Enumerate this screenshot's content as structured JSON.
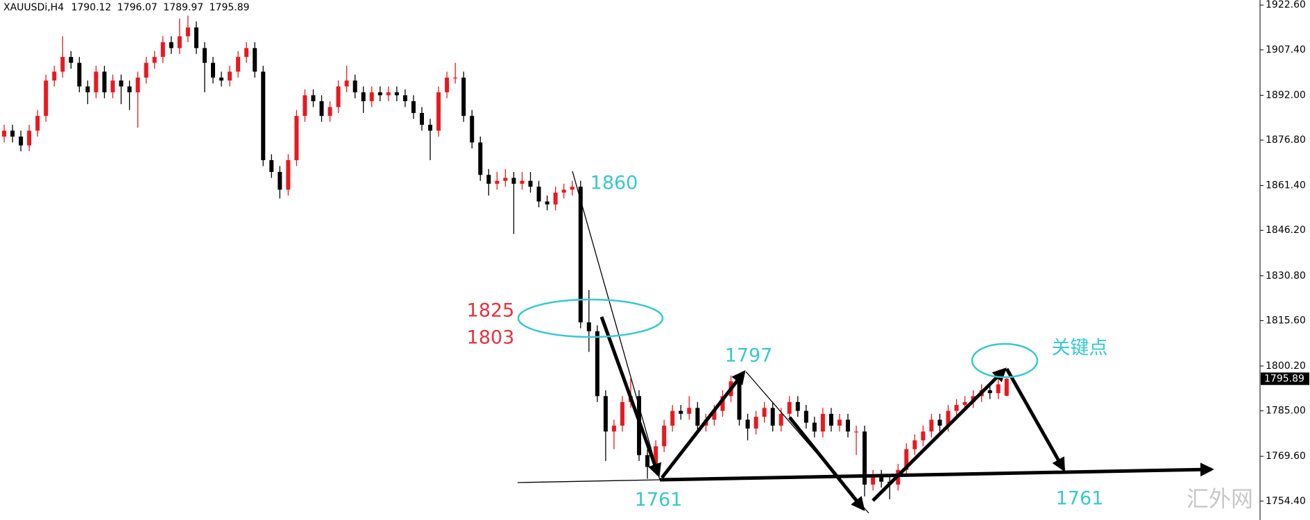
{
  "chart_data": {
    "type": "candlestick",
    "title": "XAUUSDi,H4",
    "up_color": "#e8191f",
    "down_color": "#000000",
    "ylim": [
      1748,
      1924.3
    ],
    "yticks": [
      {
        "value": 1922.6,
        "label": "1922.60"
      },
      {
        "value": 1907.4,
        "label": "1907.40"
      },
      {
        "value": 1892,
        "label": "1892.00"
      },
      {
        "value": 1876.8,
        "label": "1876.80"
      },
      {
        "value": 1861.4,
        "label": "1861.40"
      },
      {
        "value": 1846.2,
        "label": "1846.20"
      },
      {
        "value": 1830.8,
        "label": "1830.80"
      },
      {
        "value": 1815.6,
        "label": "1815.60"
      },
      {
        "value": 1800.2,
        "label": "1800.20"
      },
      {
        "value": 1785,
        "label": "1785.00"
      },
      {
        "value": 1769.6,
        "label": "1769.60"
      },
      {
        "value": 1754.4,
        "label": "1754.40"
      }
    ],
    "open": [
      1878,
      1880,
      1878,
      1875,
      1880,
      1885,
      1897,
      1900,
      1905,
      1903,
      1895,
      1893,
      1900,
      1893,
      1897,
      1895,
      1893,
      1898,
      1903,
      1905,
      1910,
      1908,
      1912,
      1915,
      1908,
      1903,
      1898,
      1897,
      1900,
      1905,
      1908,
      1900,
      1870,
      1866,
      1860,
      1870,
      1885,
      1892,
      1890,
      1885,
      1888,
      1895,
      1897,
      1893,
      1890,
      1893,
      1892,
      1893,
      1892,
      1890,
      1886,
      1882,
      1880,
      1893,
      1898,
      1898,
      1885,
      1876,
      1865,
      1862,
      1863,
      1864,
      1862,
      1863,
      1861,
      1856,
      1855,
      1859,
      1860,
      1861,
      1815,
      1812,
      1790,
      1778,
      1780,
      1788,
      1790,
      1770,
      1766,
      1773,
      1780,
      1785,
      1784,
      1786,
      1780,
      1782,
      1785,
      1790,
      1795,
      1782,
      1779,
      1783,
      1786,
      1780,
      1784,
      1788,
      1785,
      1781,
      1778,
      1784,
      1780,
      1782,
      1778,
      1778,
      1760,
      1763,
      1761,
      1760,
      1765,
      1772,
      1775,
      1778,
      1782,
      1780,
      1785,
      1787,
      1788,
      1790,
      1792,
      1791,
      1790.12
    ],
    "high": [
      1882,
      1882,
      1880,
      1882,
      1887,
      1899,
      1902,
      1912,
      1907,
      1905,
      1897,
      1902,
      1902,
      1899,
      1899,
      1897,
      1900,
      1905,
      1907,
      1912,
      1912,
      1918,
      1919,
      1917,
      1910,
      1905,
      1900,
      1902,
      1907,
      1910,
      1910,
      1902,
      1872,
      1868,
      1872,
      1887,
      1894,
      1894,
      1892,
      1890,
      1897,
      1902,
      1899,
      1895,
      1895,
      1895,
      1895,
      1895,
      1894,
      1892,
      1888,
      1884,
      1895,
      1900,
      1903,
      1900,
      1887,
      1878,
      1867,
      1866,
      1867,
      1866,
      1866,
      1866,
      1863,
      1858,
      1861,
      1862,
      1863,
      1863,
      1826,
      1814,
      1792,
      1782,
      1790,
      1796,
      1792,
      1772,
      1775,
      1782,
      1787,
      1787,
      1790,
      1788,
      1784,
      1787,
      1792,
      1797,
      1797,
      1784,
      1785,
      1788,
      1788,
      1786,
      1790,
      1790,
      1787,
      1783,
      1786,
      1786,
      1784,
      1784,
      1780,
      1780,
      1765,
      1765,
      1763,
      1767,
      1774,
      1777,
      1780,
      1784,
      1784,
      1787,
      1789,
      1790,
      1792,
      1794,
      1794,
      1796,
      1796.07
    ],
    "low": [
      1876,
      1876,
      1873,
      1873,
      1878,
      1883,
      1895,
      1898,
      1901,
      1893,
      1889,
      1891,
      1891,
      1891,
      1889,
      1887,
      1881,
      1896,
      1901,
      1903,
      1906,
      1906,
      1910,
      1906,
      1893,
      1896,
      1895,
      1895,
      1898,
      1903,
      1898,
      1868,
      1864,
      1857,
      1858,
      1868,
      1883,
      1888,
      1883,
      1883,
      1886,
      1893,
      1891,
      1886,
      1888,
      1890,
      1890,
      1890,
      1888,
      1884,
      1880,
      1870,
      1878,
      1891,
      1896,
      1883,
      1874,
      1863,
      1858,
      1860,
      1861,
      1845,
      1860,
      1859,
      1854,
      1853,
      1853,
      1857,
      1858,
      1813,
      1805,
      1788,
      1768,
      1772,
      1778,
      1786,
      1768,
      1762,
      1764,
      1771,
      1778,
      1782,
      1782,
      1778,
      1778,
      1780,
      1783,
      1788,
      1780,
      1775,
      1777,
      1781,
      1778,
      1778,
      1782,
      1783,
      1779,
      1776,
      1776,
      1778,
      1778,
      1776,
      1770,
      1756,
      1758,
      1759,
      1755,
      1758,
      1763,
      1770,
      1773,
      1776,
      1778,
      1778,
      1783,
      1785,
      1786,
      1788,
      1789,
      1789,
      1789.97
    ],
    "close": [
      1880,
      1878,
      1875,
      1880,
      1885,
      1897,
      1900,
      1905,
      1903,
      1895,
      1893,
      1900,
      1893,
      1897,
      1895,
      1893,
      1898,
      1903,
      1905,
      1910,
      1908,
      1912,
      1915,
      1908,
      1903,
      1898,
      1897,
      1900,
      1905,
      1908,
      1900,
      1870,
      1866,
      1860,
      1870,
      1885,
      1892,
      1890,
      1885,
      1888,
      1895,
      1897,
      1893,
      1890,
      1893,
      1892,
      1893,
      1892,
      1890,
      1886,
      1882,
      1880,
      1893,
      1898,
      1898,
      1885,
      1876,
      1865,
      1862,
      1863,
      1864,
      1862,
      1863,
      1861,
      1856,
      1855,
      1859,
      1860,
      1861,
      1815,
      1812,
      1790,
      1778,
      1780,
      1788,
      1790,
      1770,
      1766,
      1773,
      1780,
      1785,
      1784,
      1786,
      1780,
      1782,
      1785,
      1790,
      1795,
      1782,
      1779,
      1783,
      1786,
      1780,
      1784,
      1788,
      1785,
      1781,
      1778,
      1784,
      1780,
      1782,
      1778,
      1778,
      1760,
      1763,
      1761,
      1760,
      1765,
      1772,
      1775,
      1778,
      1782,
      1780,
      1785,
      1787,
      1788,
      1790,
      1792,
      1791,
      1794,
      1795.89
    ],
    "annotations": [
      "1860",
      "1825",
      "1803",
      "1797",
      "关键点",
      "1761",
      "1761"
    ],
    "watermark": "汇外网"
  }
}
